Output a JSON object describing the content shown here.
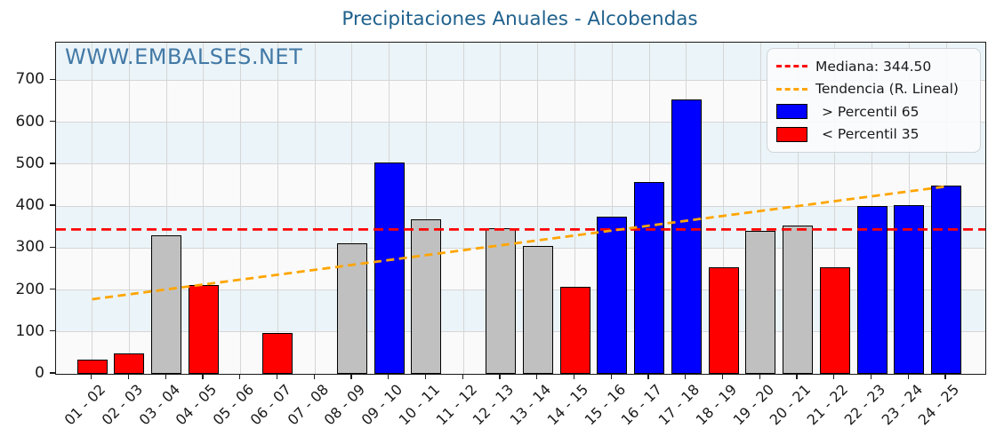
{
  "title": "Precipitaciones Anuales - Alcobendas",
  "watermark": "WWW.EMBALSES.NET",
  "legend": {
    "median_label": "Mediana: 344.50",
    "trend_label": "Tendencia (R. Lineal)",
    "p65_label": "> Percentil 65",
    "p35_label": "< Percentil 35"
  },
  "chart_data": {
    "type": "bar",
    "title": "Precipitaciones Anuales - Alcobendas",
    "xlabel": "",
    "ylabel": "",
    "categories": [
      "01 - 02",
      "02 - 03",
      "03 - 04",
      "04 - 05",
      "05 - 06",
      "06 - 07",
      "07 - 08",
      "08 - 09",
      "09 - 10",
      "10 - 11",
      "11 - 12",
      "12 - 13",
      "13 - 14",
      "14 - 15",
      "15 - 16",
      "16 - 17",
      "17 - 18",
      "18 - 19",
      "19 - 20",
      "20 - 21",
      "21 - 22",
      "22 - 23",
      "23 - 24",
      "24 - 25"
    ],
    "values": [
      33,
      48,
      330,
      212,
      0,
      97,
      0,
      312,
      505,
      368,
      0,
      348,
      305,
      208,
      375,
      458,
      655,
      255,
      342,
      353,
      255,
      400,
      402,
      450
    ],
    "bar_classes": [
      "red",
      "red",
      "gray",
      "red",
      "none",
      "red",
      "none",
      "gray",
      "blue",
      "gray",
      "none",
      "gray",
      "gray",
      "red",
      "blue",
      "blue",
      "blue",
      "red",
      "gray",
      "gray",
      "red",
      "blue",
      "blue",
      "blue"
    ],
    "median": 344.5,
    "trend_line": {
      "start_value": 178,
      "end_value": 447
    },
    "yticks": [
      0,
      100,
      200,
      300,
      400,
      500,
      600,
      700
    ],
    "ylim": [
      0,
      790
    ],
    "grid": true,
    "legend_position": "upper right",
    "colors": {
      "blue_bar": "#0000ff",
      "red_bar": "#ff0000",
      "gray_bar": "#c0c0c0",
      "median_line": "#ff0000",
      "trend_line": "#ffa500",
      "band_white": "#fafafa",
      "band_blue": "#ebf4f8",
      "grid_line": "#d6d6d6",
      "title_text": "#1f618d",
      "watermark_text": "#4279a6"
    }
  }
}
